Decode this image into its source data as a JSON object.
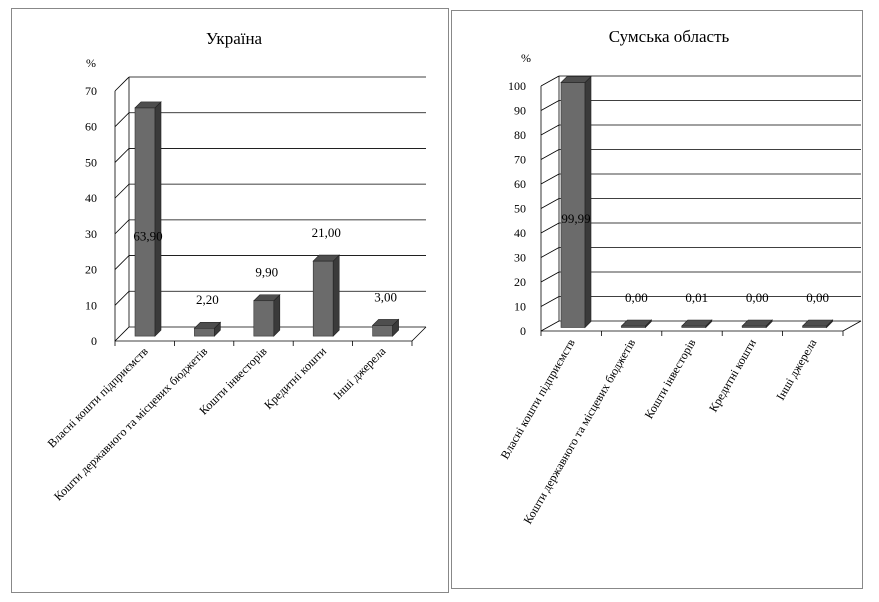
{
  "chart_data": [
    {
      "type": "bar",
      "title": "Україна",
      "ylabel": "%",
      "ylim": [
        0,
        70
      ],
      "yticks": [
        "0",
        "10",
        "20",
        "30",
        "40",
        "50",
        "60",
        "70"
      ],
      "categories": [
        "Власні кошти підприємств",
        "Кошти державного та місцевих бюджетів",
        "Кошти інвесторів",
        "Кредитні кошти",
        "Інші джерела"
      ],
      "values": [
        63.9,
        2.2,
        9.9,
        21.0,
        3.0
      ],
      "data_labels": [
        "63,90",
        "2,20",
        "9,90",
        "21,00",
        "3,00"
      ],
      "grid": true,
      "legend": "none"
    },
    {
      "type": "bar",
      "title": "Сумська область",
      "ylabel": "%",
      "ylim": [
        0,
        100
      ],
      "yticks": [
        "0",
        "10",
        "20",
        "30",
        "40",
        "50",
        "60",
        "70",
        "80",
        "90",
        "100"
      ],
      "categories": [
        "Власні кошти підприємств",
        "Кошти державного та місцевих бюджетів",
        "Кошти інвесторів",
        "Кредитні кошти",
        "Інші джерела"
      ],
      "values": [
        99.99,
        0.0,
        0.01,
        0.0,
        0.0
      ],
      "data_labels": [
        "99,99",
        "0,00",
        "0,01",
        "0,00",
        "0,00"
      ],
      "grid": true,
      "legend": "none"
    }
  ],
  "colors": {
    "bar_front": "#6b6b6b",
    "bar_side": "#3a3a3a",
    "bar_top": "#4e4e4e",
    "grid": "#000000",
    "frame": "#888888"
  }
}
